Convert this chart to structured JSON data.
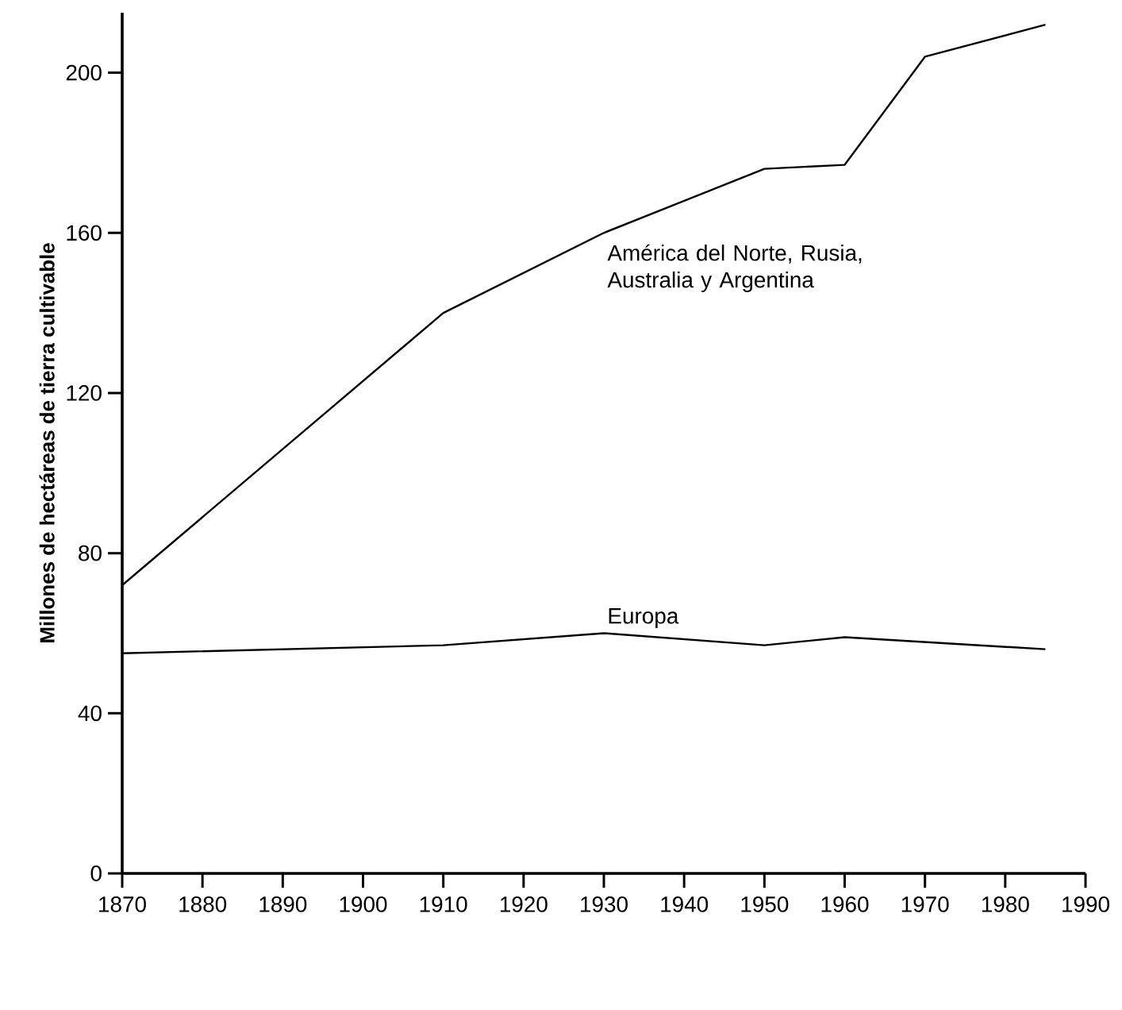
{
  "chart_data": {
    "type": "line",
    "ylabel": "Millones de hectáreas de tierra cultivable",
    "series": [
      {
        "name": "América del Norte, Rusia, Australia y Argentina",
        "color": "#000000",
        "x": [
          1870,
          1910,
          1930,
          1950,
          1960,
          1970,
          1985
        ],
        "values": [
          72,
          140,
          160,
          176,
          177,
          204,
          212
        ]
      },
      {
        "name": "Europa",
        "color": "#000000",
        "x": [
          1870,
          1910,
          1930,
          1950,
          1960,
          1985
        ],
        "values": [
          55,
          57,
          60,
          57,
          59,
          56
        ]
      }
    ],
    "xlim": [
      1870,
      1990
    ],
    "xticks": [
      1870,
      1880,
      1890,
      1900,
      1910,
      1920,
      1930,
      1940,
      1950,
      1960,
      1970,
      1980,
      1990
    ],
    "ylim": [
      0,
      215
    ],
    "yticks": [
      0,
      40,
      80,
      120,
      160,
      200
    ],
    "line_style": "solid"
  }
}
